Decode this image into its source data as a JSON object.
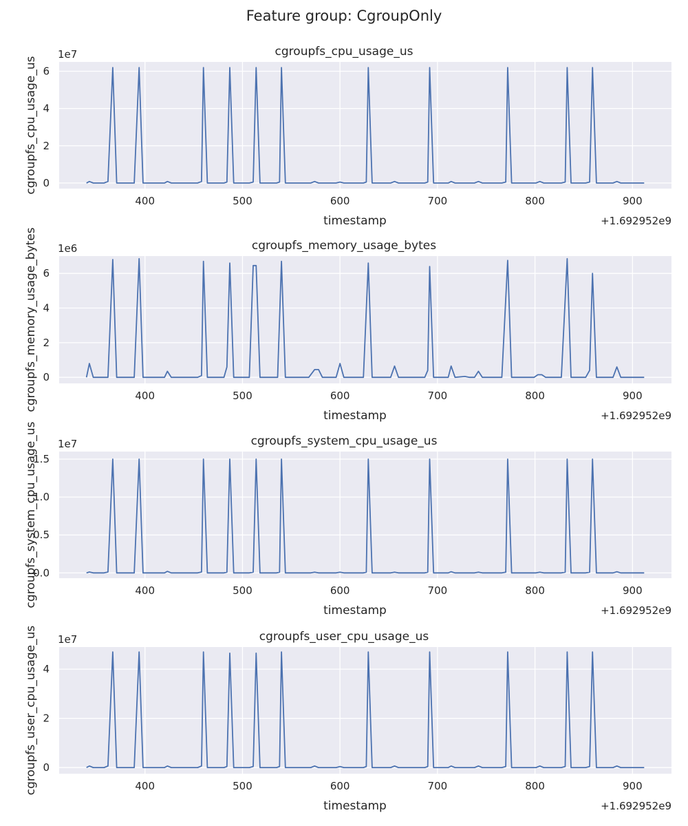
{
  "figure": {
    "suptitle": "Feature group: CgroupOnly"
  },
  "colors": {
    "line": "#4c72b0",
    "axes_bg": "#eaeaf2",
    "grid": "#ffffff",
    "text": "#262626"
  },
  "chart_data": [
    {
      "type": "line",
      "title": "cgroupfs_cpu_usage_us",
      "xlabel": "timestamp",
      "ylabel": "cgroupfs_cpu_usage_us",
      "x_offset_text": "+1.692952e9",
      "y_scale_text": "1e7",
      "xlim": [
        312,
        940
      ],
      "ylim": [
        -0.3,
        6.5
      ],
      "x_ticks": [
        400,
        500,
        600,
        700,
        800,
        900
      ],
      "x_tick_labels": [
        "400",
        "500",
        "600",
        "700",
        "800",
        "900"
      ],
      "y_ticks": [
        0,
        2,
        4,
        6
      ],
      "y_tick_labels": [
        "0",
        "2",
        "4",
        "6"
      ],
      "grid": true,
      "series": [
        {
          "x": [
            340,
            343,
            347,
            358,
            362,
            367,
            371,
            389,
            394,
            398,
            420,
            423,
            427,
            454,
            458,
            460,
            464,
            481,
            484,
            487,
            491,
            507,
            511,
            514,
            518,
            535,
            538,
            540,
            544,
            570,
            574,
            578,
            596,
            600,
            604,
            624,
            627,
            629,
            633,
            652,
            656,
            660,
            687,
            690,
            692,
            696,
            711,
            714,
            718,
            738,
            742,
            746,
            766,
            770,
            772,
            776,
            801,
            805,
            809,
            827,
            831,
            833,
            837,
            852,
            856,
            859,
            863,
            880,
            884,
            888,
            912
          ],
          "y": [
            0,
            0.08,
            0,
            0,
            0.08,
            6.2,
            0,
            0,
            6.2,
            0,
            0,
            0.08,
            0,
            0,
            0.08,
            6.2,
            0,
            0,
            0.05,
            6.2,
            0,
            0,
            0.05,
            6.2,
            0,
            0,
            0.05,
            6.2,
            0,
            0,
            0.08,
            0,
            0,
            0.05,
            0,
            0,
            0.05,
            6.2,
            0,
            0,
            0.08,
            0,
            0,
            0.05,
            6.2,
            0,
            0,
            0.08,
            0,
            0,
            0.08,
            0,
            0,
            0.05,
            6.2,
            0,
            0,
            0.08,
            0,
            0,
            0.05,
            6.2,
            0,
            0,
            0.05,
            6.2,
            0,
            0,
            0.08,
            0,
            0
          ]
        }
      ]
    },
    {
      "type": "line",
      "title": "cgroupfs_memory_usage_bytes",
      "xlabel": "timestamp",
      "ylabel": "cgroupfs_memory_usage_bytes",
      "x_offset_text": "+1.692952e9",
      "y_scale_text": "1e6",
      "xlim": [
        312,
        940
      ],
      "ylim": [
        -0.35,
        7.0
      ],
      "x_ticks": [
        400,
        500,
        600,
        700,
        800,
        900
      ],
      "x_tick_labels": [
        "400",
        "500",
        "600",
        "700",
        "800",
        "900"
      ],
      "y_ticks": [
        0,
        2,
        4,
        6
      ],
      "y_tick_labels": [
        "0",
        "2",
        "4",
        "6"
      ],
      "grid": true,
      "series": [
        {
          "x": [
            340,
            343,
            347,
            362,
            367,
            371,
            389,
            394,
            398,
            420,
            423,
            427,
            454,
            458,
            460,
            464,
            481,
            484,
            487,
            491,
            507,
            511,
            514,
            518,
            522,
            536,
            540,
            544,
            568,
            574,
            578,
            582,
            596,
            600,
            604,
            624,
            629,
            633,
            652,
            656,
            660,
            687,
            690,
            692,
            696,
            711,
            714,
            718,
            728,
            733,
            738,
            742,
            746,
            766,
            772,
            776,
            799,
            803,
            807,
            811,
            827,
            833,
            837,
            852,
            856,
            859,
            863,
            880,
            884,
            888,
            912
          ],
          "y": [
            0,
            0.8,
            0,
            0,
            6.8,
            0,
            0,
            6.85,
            0,
            0,
            0.35,
            0,
            0,
            0.1,
            6.7,
            0,
            0,
            0.6,
            6.6,
            0,
            0,
            6.45,
            6.45,
            0,
            0,
            0,
            6.7,
            0,
            0,
            0.45,
            0.45,
            0,
            0,
            0.8,
            0,
            0,
            6.6,
            0,
            0,
            0.65,
            0,
            0,
            0.4,
            6.4,
            0,
            0,
            0.65,
            0,
            0.05,
            0,
            0,
            0.35,
            0,
            0,
            6.75,
            0,
            0,
            0.15,
            0.15,
            0,
            0,
            6.85,
            0,
            0,
            0.4,
            6.0,
            0,
            0,
            0.6,
            0,
            0
          ]
        }
      ]
    },
    {
      "type": "line",
      "title": "cgroupfs_system_cpu_usage_us",
      "xlabel": "timestamp",
      "ylabel": "cgroupfs_system_cpu_usage_us",
      "x_offset_text": "+1.692952e9",
      "y_scale_text": "1e7",
      "xlim": [
        312,
        940
      ],
      "ylim": [
        -0.07,
        1.6
      ],
      "x_ticks": [
        400,
        500,
        600,
        700,
        800,
        900
      ],
      "x_tick_labels": [
        "400",
        "500",
        "600",
        "700",
        "800",
        "900"
      ],
      "y_ticks": [
        0.0,
        0.5,
        1.0,
        1.5
      ],
      "y_tick_labels": [
        "0.0",
        "0.5",
        "1.0",
        "1.5"
      ],
      "grid": true,
      "series": [
        {
          "x": [
            340,
            343,
            347,
            358,
            362,
            367,
            371,
            389,
            394,
            398,
            420,
            423,
            427,
            454,
            458,
            460,
            464,
            481,
            484,
            487,
            491,
            507,
            511,
            514,
            518,
            535,
            538,
            540,
            544,
            570,
            574,
            578,
            596,
            600,
            604,
            624,
            627,
            629,
            633,
            652,
            656,
            660,
            687,
            690,
            692,
            696,
            711,
            714,
            718,
            738,
            742,
            746,
            766,
            770,
            772,
            776,
            801,
            805,
            809,
            827,
            831,
            833,
            837,
            852,
            856,
            859,
            863,
            880,
            884,
            888,
            912
          ],
          "y": [
            0,
            0.012,
            0,
            0,
            0.012,
            1.5,
            0,
            0,
            1.5,
            0,
            0,
            0.02,
            0,
            0,
            0.012,
            1.5,
            0,
            0,
            0.01,
            1.5,
            0,
            0,
            0.01,
            1.5,
            0,
            0,
            0.01,
            1.5,
            0,
            0,
            0.01,
            0,
            0,
            0.01,
            0,
            0,
            0.01,
            1.5,
            0,
            0,
            0.01,
            0,
            0,
            0.01,
            1.5,
            0,
            0,
            0.015,
            0,
            0,
            0.01,
            0,
            0,
            0.01,
            1.5,
            0,
            0,
            0.01,
            0,
            0,
            0.01,
            1.5,
            0,
            0,
            0.01,
            1.5,
            0,
            0,
            0.015,
            0,
            0
          ]
        }
      ]
    },
    {
      "type": "line",
      "title": "cgroupfs_user_cpu_usage_us",
      "xlabel": "timestamp",
      "ylabel": "cgroupfs_user_cpu_usage_us",
      "x_offset_text": "+1.692952e9",
      "y_scale_text": "1e7",
      "xlim": [
        312,
        940
      ],
      "ylim": [
        -0.25,
        4.9
      ],
      "x_ticks": [
        400,
        500,
        600,
        700,
        800,
        900
      ],
      "x_tick_labels": [
        "400",
        "500",
        "600",
        "700",
        "800",
        "900"
      ],
      "y_ticks": [
        0,
        2,
        4
      ],
      "y_tick_labels": [
        "0",
        "2",
        "4"
      ],
      "grid": true,
      "series": [
        {
          "x": [
            340,
            343,
            347,
            358,
            362,
            367,
            371,
            389,
            394,
            398,
            420,
            423,
            427,
            454,
            458,
            460,
            464,
            481,
            484,
            487,
            491,
            507,
            511,
            514,
            518,
            535,
            538,
            540,
            544,
            570,
            574,
            578,
            596,
            600,
            604,
            624,
            627,
            629,
            633,
            652,
            656,
            660,
            687,
            690,
            692,
            696,
            711,
            714,
            718,
            738,
            742,
            746,
            766,
            770,
            772,
            776,
            801,
            805,
            809,
            827,
            831,
            833,
            837,
            852,
            856,
            859,
            863,
            880,
            884,
            888,
            912
          ],
          "y": [
            0,
            0.06,
            0,
            0,
            0.06,
            4.7,
            0,
            0,
            4.7,
            0,
            0,
            0.06,
            0,
            0,
            0.06,
            4.7,
            0,
            0,
            0.04,
            4.65,
            0,
            0,
            0.04,
            4.65,
            0,
            0,
            0.04,
            4.7,
            0,
            0,
            0.06,
            0,
            0,
            0.04,
            0,
            0,
            0.04,
            4.7,
            0,
            0,
            0.06,
            0,
            0,
            0.04,
            4.7,
            0,
            0,
            0.06,
            0,
            0,
            0.06,
            0,
            0,
            0.04,
            4.7,
            0,
            0,
            0.06,
            0,
            0,
            0.04,
            4.7,
            0,
            0,
            0.04,
            4.7,
            0,
            0,
            0.06,
            0,
            0
          ]
        }
      ]
    }
  ]
}
